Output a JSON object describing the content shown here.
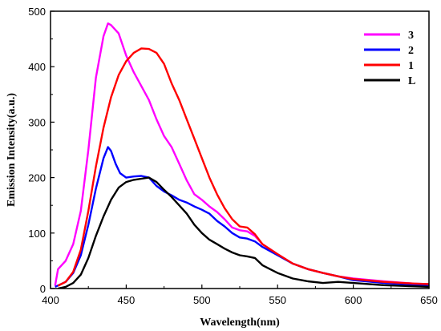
{
  "chart_data": {
    "type": "line",
    "xlabel": "Wavelength(nm)",
    "ylabel": "Emission Intensity(a.u.)",
    "xlim": [
      400,
      650
    ],
    "ylim": [
      0,
      500
    ],
    "xticks": [
      400,
      450,
      500,
      550,
      600,
      650
    ],
    "yticks": [
      0,
      100,
      200,
      300,
      400,
      500
    ],
    "grid": false,
    "legend_position": "top-right",
    "series": [
      {
        "name": "3",
        "color": "#ff00ff",
        "x": [
          403,
          405,
          410,
          415,
          420,
          425,
          430,
          435,
          438,
          440,
          445,
          450,
          455,
          460,
          465,
          470,
          475,
          480,
          485,
          490,
          495,
          500,
          505,
          510,
          515,
          520,
          525,
          530,
          535,
          540,
          550,
          560,
          570,
          580,
          590,
          600,
          620,
          640,
          650
        ],
        "y": [
          5,
          35,
          50,
          80,
          140,
          250,
          380,
          455,
          478,
          475,
          460,
          420,
          390,
          365,
          340,
          305,
          275,
          255,
          225,
          195,
          170,
          160,
          148,
          138,
          125,
          110,
          105,
          103,
          95,
          80,
          62,
          45,
          35,
          28,
          22,
          18,
          13,
          9,
          8
        ]
      },
      {
        "name": "2",
        "color": "#0000ff",
        "x": [
          403,
          410,
          415,
          420,
          425,
          430,
          435,
          438,
          440,
          443,
          446,
          450,
          455,
          460,
          465,
          470,
          475,
          480,
          485,
          490,
          495,
          500,
          505,
          510,
          515,
          520,
          525,
          530,
          535,
          540,
          550,
          560,
          570,
          580,
          590,
          600,
          620,
          640,
          650
        ],
        "y": [
          3,
          12,
          28,
          60,
          115,
          180,
          235,
          255,
          248,
          225,
          208,
          200,
          202,
          203,
          200,
          185,
          175,
          168,
          160,
          155,
          148,
          142,
          135,
          122,
          112,
          100,
          92,
          90,
          85,
          75,
          60,
          45,
          35,
          28,
          22,
          15,
          10,
          7,
          5
        ]
      },
      {
        "name": "1",
        "color": "#ff0000",
        "x": [
          405,
          410,
          415,
          420,
          425,
          430,
          435,
          440,
          445,
          450,
          455,
          460,
          465,
          470,
          475,
          480,
          485,
          490,
          495,
          500,
          505,
          510,
          515,
          520,
          525,
          530,
          535,
          540,
          550,
          560,
          570,
          580,
          590,
          600,
          620,
          640,
          650
        ],
        "y": [
          5,
          12,
          30,
          70,
          140,
          220,
          290,
          345,
          385,
          410,
          425,
          433,
          432,
          425,
          405,
          370,
          340,
          305,
          270,
          235,
          200,
          170,
          145,
          125,
          112,
          110,
          98,
          80,
          62,
          45,
          35,
          28,
          22,
          17,
          12,
          9,
          8
        ]
      },
      {
        "name": "L",
        "color": "#000000",
        "x": [
          405,
          410,
          415,
          420,
          425,
          430,
          435,
          440,
          445,
          450,
          455,
          460,
          465,
          470,
          475,
          480,
          485,
          490,
          495,
          500,
          505,
          510,
          515,
          520,
          525,
          530,
          535,
          540,
          545,
          550,
          560,
          570,
          580,
          590,
          600,
          620,
          640,
          650
        ],
        "y": [
          0,
          3,
          10,
          25,
          55,
          95,
          130,
          160,
          182,
          192,
          196,
          198,
          200,
          192,
          178,
          165,
          150,
          135,
          115,
          100,
          88,
          80,
          72,
          65,
          60,
          58,
          55,
          42,
          35,
          28,
          18,
          13,
          10,
          12,
          10,
          6,
          4,
          3
        ]
      }
    ]
  }
}
